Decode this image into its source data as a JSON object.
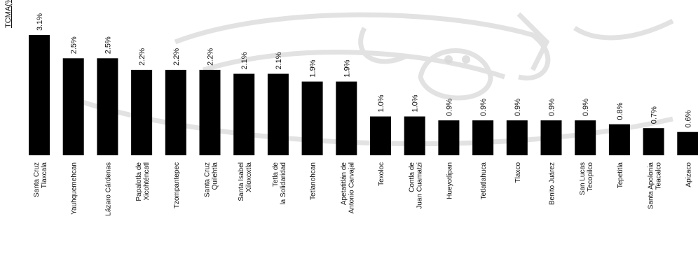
{
  "chart_data": {
    "type": "bar",
    "ylabel": "TCMA(%)",
    "categories": [
      "Santa Cruz Tlaxcala",
      "Yauhquemehcan",
      "Lázaro Cárdenas",
      "Papalotla de Xicohténcatl",
      "Tzompantepec",
      "Santa Cruz Quilehtla",
      "Santa Isabel Xiloxoxtla",
      "Tetla de la Solidaridad",
      "Tetlanohcan",
      "Apetatitlán de Antonio Carvajal",
      "Texoloc",
      "Contla de Juan Cuamatzi",
      "Hueyotlipan",
      "Tetlatlahuca",
      "Tlaxco",
      "Benito Juárez",
      "San Lucas Tecopilco",
      "Tepetitla",
      "Santa Apolonia Teacalco",
      "Apizaco"
    ],
    "labels": [
      "3.1%",
      "2.5%",
      "2.5%",
      "2.2%",
      "2.2%",
      "2.2%",
      "2.1%",
      "2.1%",
      "1.9%",
      "1.9%",
      "1.0%",
      "1.0%",
      "0.9%",
      "0.9%",
      "0.9%",
      "0.9%",
      "0.9%",
      "0.8%",
      "0.7%",
      "0.6%"
    ],
    "values": [
      3.1,
      2.5,
      2.5,
      2.2,
      2.2,
      2.2,
      2.1,
      2.1,
      1.9,
      1.9,
      1.0,
      1.0,
      0.9,
      0.9,
      0.9,
      0.9,
      0.9,
      0.8,
      0.7,
      0.6
    ],
    "ylim": [
      0,
      3.1
    ],
    "colors": {
      "bar": "#000000",
      "text": "#111111",
      "watermark": "#d6d6d6"
    },
    "grid": false,
    "legend": "none"
  }
}
